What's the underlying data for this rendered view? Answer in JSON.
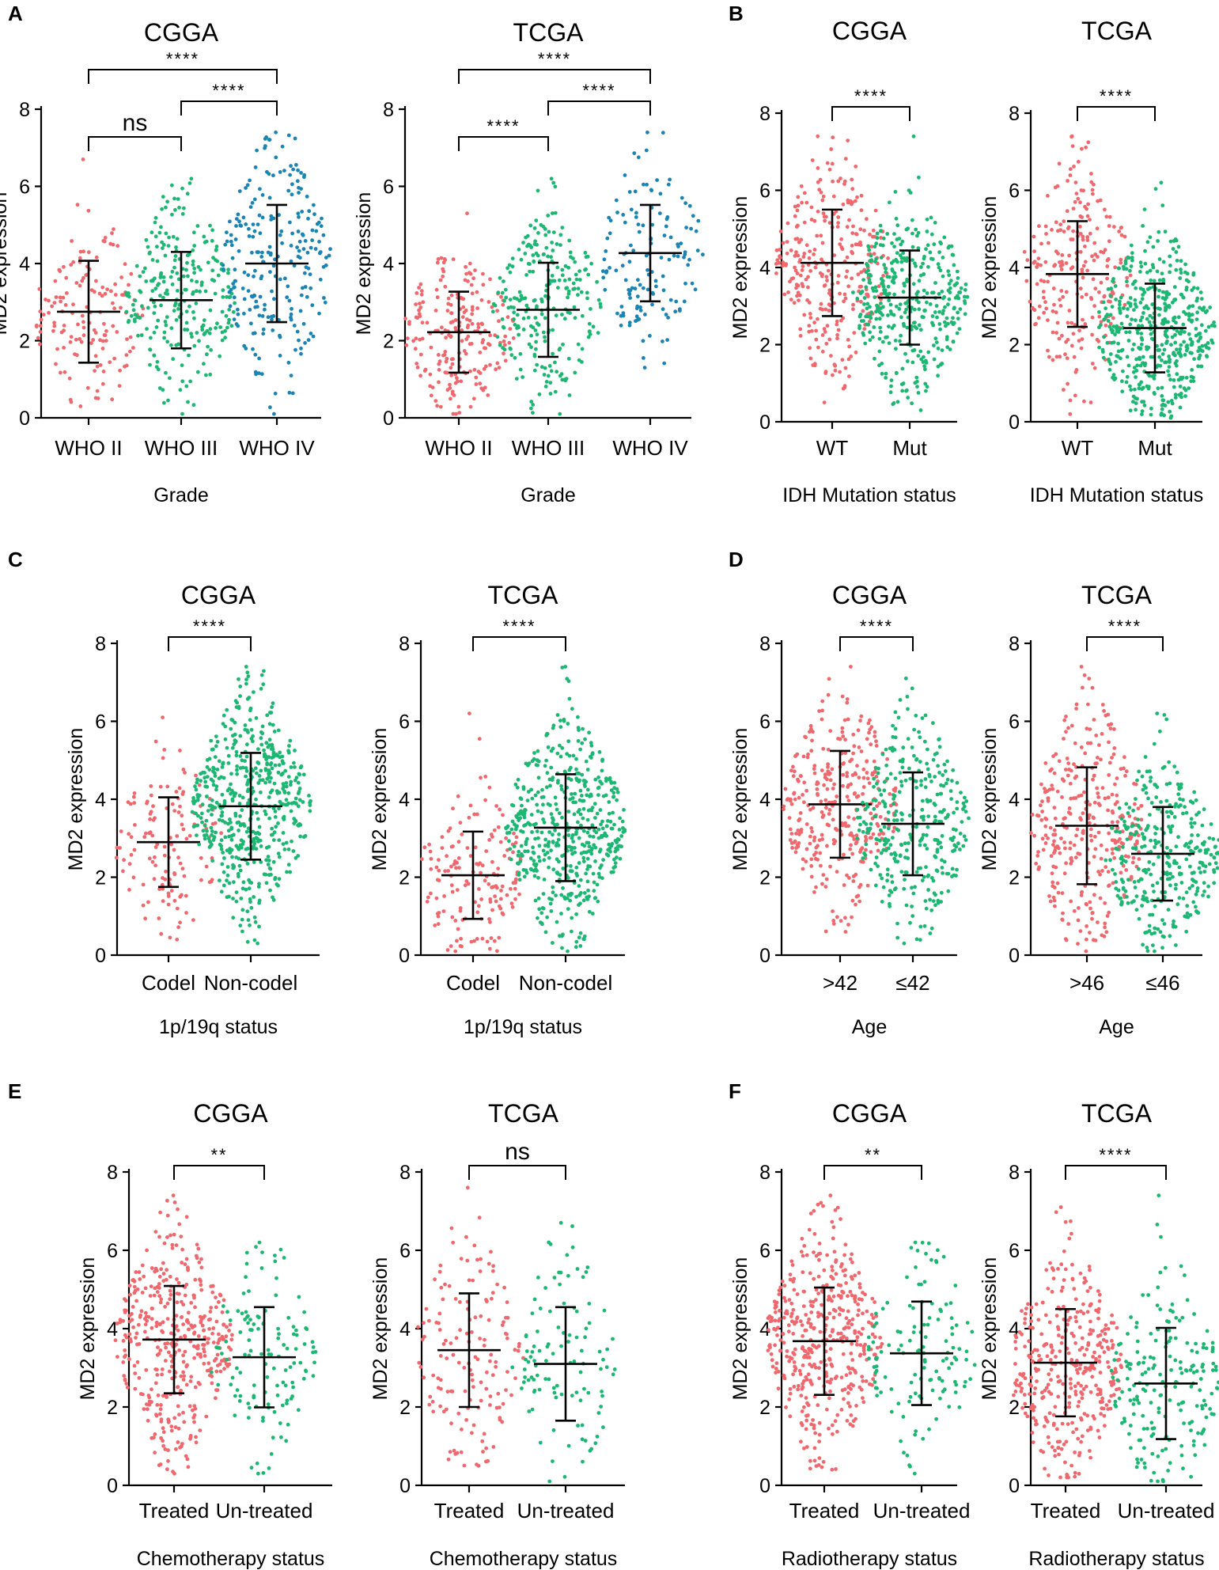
{
  "figure": {
    "y_axis_label": "MD2 expression",
    "y_ticks": [
      "0",
      "2",
      "4",
      "6",
      "8"
    ],
    "colors": {
      "red": "#f0686e",
      "green": "#1cb873",
      "blue": "#1a84b5"
    }
  },
  "chart_data": [
    {
      "id": "A-cgga",
      "panel": "A",
      "type": "scatter",
      "title": "CGGA",
      "xlabel": "Grade",
      "ylabel": "MD2 expression",
      "ylim": [
        0,
        8
      ],
      "categories": [
        "WHO II",
        "WHO III",
        "WHO IV"
      ],
      "colors": [
        "red",
        "green",
        "blue"
      ],
      "groups": [
        {
          "mean": 2.75,
          "sd": 1.32,
          "min": 0.3,
          "max": 6.7,
          "n": 150
        },
        {
          "mean": 3.05,
          "sd": 1.25,
          "min": 0.1,
          "max": 6.2,
          "n": 260
        },
        {
          "mean": 4.0,
          "sd": 1.52,
          "min": 0.1,
          "max": 7.4,
          "n": 240
        }
      ],
      "comparisons": [
        {
          "from": 0,
          "to": 2,
          "label": "****",
          "level": 1
        },
        {
          "from": 1,
          "to": 2,
          "label": "****",
          "level": 0
        },
        {
          "from": 0,
          "to": 1,
          "label": "ns",
          "level": 0
        }
      ]
    },
    {
      "id": "A-tcga",
      "panel": "",
      "type": "scatter",
      "title": "TCGA",
      "xlabel": "Grade",
      "ylabel": "MD2 expression",
      "ylim": [
        0,
        8
      ],
      "categories": [
        "WHO II",
        "WHO III",
        "WHO IV"
      ],
      "colors": [
        "red",
        "green",
        "blue"
      ],
      "groups": [
        {
          "mean": 2.22,
          "sd": 1.05,
          "min": 0.1,
          "max": 5.3,
          "n": 220
        },
        {
          "mean": 2.8,
          "sd": 1.22,
          "min": 0.1,
          "max": 6.2,
          "n": 250
        },
        {
          "mean": 4.27,
          "sd": 1.25,
          "min": 1.3,
          "max": 7.4,
          "n": 140
        }
      ],
      "comparisons": [
        {
          "from": 0,
          "to": 2,
          "label": "****",
          "level": 1
        },
        {
          "from": 1,
          "to": 2,
          "label": "****",
          "level": 0
        },
        {
          "from": 0,
          "to": 1,
          "label": "****",
          "level": 0
        }
      ]
    },
    {
      "id": "B-cgga",
      "panel": "B",
      "type": "scatter",
      "title": "CGGA",
      "xlabel": "IDH Mutation status",
      "ylabel": "MD2 expression",
      "ylim": [
        0,
        8
      ],
      "categories": [
        "WT",
        "Mut"
      ],
      "colors": [
        "red",
        "green"
      ],
      "groups": [
        {
          "mean": 4.12,
          "sd": 1.38,
          "min": 0.5,
          "max": 7.4,
          "n": 300
        },
        {
          "mean": 3.22,
          "sd": 1.22,
          "min": 0.3,
          "max": 7.4,
          "n": 380
        }
      ],
      "comparisons": [
        {
          "from": 0,
          "to": 1,
          "label": "****",
          "level": 0
        }
      ]
    },
    {
      "id": "B-tcga",
      "panel": "",
      "type": "scatter",
      "title": "TCGA",
      "xlabel": "IDH Mutation status",
      "ylabel": "MD2 expression",
      "ylim": [
        0,
        8
      ],
      "categories": [
        "WT",
        "Mut"
      ],
      "colors": [
        "red",
        "green"
      ],
      "groups": [
        {
          "mean": 3.83,
          "sd": 1.37,
          "min": 0.2,
          "max": 7.4,
          "n": 240
        },
        {
          "mean": 2.43,
          "sd": 1.15,
          "min": 0.1,
          "max": 6.2,
          "n": 480
        }
      ],
      "comparisons": [
        {
          "from": 0,
          "to": 1,
          "label": "****",
          "level": 0
        }
      ]
    },
    {
      "id": "C-cgga",
      "panel": "C",
      "type": "scatter",
      "title": "CGGA",
      "xlabel": "1p/19q status",
      "ylabel": "MD2 expression",
      "ylim": [
        0,
        8
      ],
      "categories": [
        "Codel",
        "Non-codel"
      ],
      "colors": [
        "red",
        "green"
      ],
      "groups": [
        {
          "mean": 2.9,
          "sd": 1.15,
          "min": 0.4,
          "max": 6.1,
          "n": 130
        },
        {
          "mean": 3.82,
          "sd": 1.37,
          "min": 0.3,
          "max": 7.4,
          "n": 550
        }
      ],
      "comparisons": [
        {
          "from": 0,
          "to": 1,
          "label": "****",
          "level": 0
        }
      ]
    },
    {
      "id": "C-tcga",
      "panel": "",
      "type": "scatter",
      "title": "TCGA",
      "xlabel": "1p/19q status",
      "ylabel": "MD2 expression",
      "ylim": [
        0,
        8
      ],
      "categories": [
        "Codel",
        "Non-codel"
      ],
      "colors": [
        "red",
        "green"
      ],
      "groups": [
        {
          "mean": 2.05,
          "sd": 1.12,
          "min": 0.1,
          "max": 6.2,
          "n": 160
        },
        {
          "mean": 3.27,
          "sd": 1.37,
          "min": 0.1,
          "max": 7.4,
          "n": 520
        }
      ],
      "comparisons": [
        {
          "from": 0,
          "to": 1,
          "label": "****",
          "level": 0
        }
      ]
    },
    {
      "id": "D-cgga",
      "panel": "D",
      "type": "scatter",
      "title": "CGGA",
      "xlabel": "Age",
      "ylabel": "MD2 expression",
      "ylim": [
        0,
        8
      ],
      "categories": [
        ">42",
        "≤42"
      ],
      "colors": [
        "red",
        "green"
      ],
      "groups": [
        {
          "mean": 3.87,
          "sd": 1.37,
          "min": 0.6,
          "max": 7.4,
          "n": 330
        },
        {
          "mean": 3.37,
          "sd": 1.32,
          "min": 0.3,
          "max": 7.1,
          "n": 330
        }
      ],
      "comparisons": [
        {
          "from": 0,
          "to": 1,
          "label": "****",
          "level": 0
        }
      ]
    },
    {
      "id": "D-tcga",
      "panel": "",
      "type": "scatter",
      "title": "TCGA",
      "xlabel": "Age",
      "ylabel": "MD2 expression",
      "ylim": [
        0,
        8
      ],
      "categories": [
        ">46",
        "≤46"
      ],
      "colors": [
        "red",
        "green"
      ],
      "groups": [
        {
          "mean": 3.32,
          "sd": 1.5,
          "min": 0.1,
          "max": 7.4,
          "n": 330
        },
        {
          "mean": 2.6,
          "sd": 1.2,
          "min": 0.1,
          "max": 6.2,
          "n": 330
        }
      ],
      "comparisons": [
        {
          "from": 0,
          "to": 1,
          "label": "****",
          "level": 0
        }
      ]
    },
    {
      "id": "E-cgga",
      "panel": "E",
      "type": "scatter",
      "title": "CGGA",
      "xlabel": "Chemotherapy status",
      "ylabel": "MD2 expression",
      "ylim": [
        0,
        8
      ],
      "categories": [
        "Treated",
        "Un-treated"
      ],
      "colors": [
        "red",
        "green"
      ],
      "groups": [
        {
          "mean": 3.72,
          "sd": 1.37,
          "min": 0.3,
          "max": 7.4,
          "n": 420
        },
        {
          "mean": 3.27,
          "sd": 1.28,
          "min": 0.3,
          "max": 6.2,
          "n": 130
        }
      ],
      "comparisons": [
        {
          "from": 0,
          "to": 1,
          "label": "**",
          "level": 0
        }
      ]
    },
    {
      "id": "E-tcga",
      "panel": "",
      "type": "scatter",
      "title": "TCGA",
      "xlabel": "Chemotherapy status",
      "ylabel": "MD2 expression",
      "ylim": [
        0,
        8
      ],
      "categories": [
        "Treated",
        "Un-treated"
      ],
      "colors": [
        "red",
        "green"
      ],
      "groups": [
        {
          "mean": 3.45,
          "sd": 1.45,
          "min": 0.5,
          "max": 7.6,
          "n": 150
        },
        {
          "mean": 3.1,
          "sd": 1.45,
          "min": 0.1,
          "max": 6.7,
          "n": 110
        }
      ],
      "comparisons": [
        {
          "from": 0,
          "to": 1,
          "label": "ns",
          "level": 0
        }
      ]
    },
    {
      "id": "F-cgga",
      "panel": "F",
      "type": "scatter",
      "title": "CGGA",
      "xlabel": "Radiotherapy status",
      "ylabel": "MD2 expression",
      "ylim": [
        0,
        8
      ],
      "categories": [
        "Treated",
        "Un-treated"
      ],
      "colors": [
        "red",
        "green"
      ],
      "groups": [
        {
          "mean": 3.68,
          "sd": 1.37,
          "min": 0.4,
          "max": 7.4,
          "n": 440
        },
        {
          "mean": 3.37,
          "sd": 1.32,
          "min": 0.3,
          "max": 6.2,
          "n": 130
        }
      ],
      "comparisons": [
        {
          "from": 0,
          "to": 1,
          "label": "**",
          "level": 0
        }
      ]
    },
    {
      "id": "F-tcga",
      "panel": "",
      "type": "scatter",
      "title": "TCGA",
      "xlabel": "Radiotherapy status",
      "ylabel": "MD2 expression",
      "ylim": [
        0,
        8
      ],
      "categories": [
        "Treated",
        "Un-treated"
      ],
      "colors": [
        "red",
        "green"
      ],
      "groups": [
        {
          "mean": 3.13,
          "sd": 1.37,
          "min": 0.2,
          "max": 7.1,
          "n": 370
        },
        {
          "mean": 2.6,
          "sd": 1.42,
          "min": 0.1,
          "max": 7.4,
          "n": 200
        }
      ],
      "comparisons": [
        {
          "from": 0,
          "to": 1,
          "label": "****",
          "level": 0
        }
      ]
    }
  ]
}
